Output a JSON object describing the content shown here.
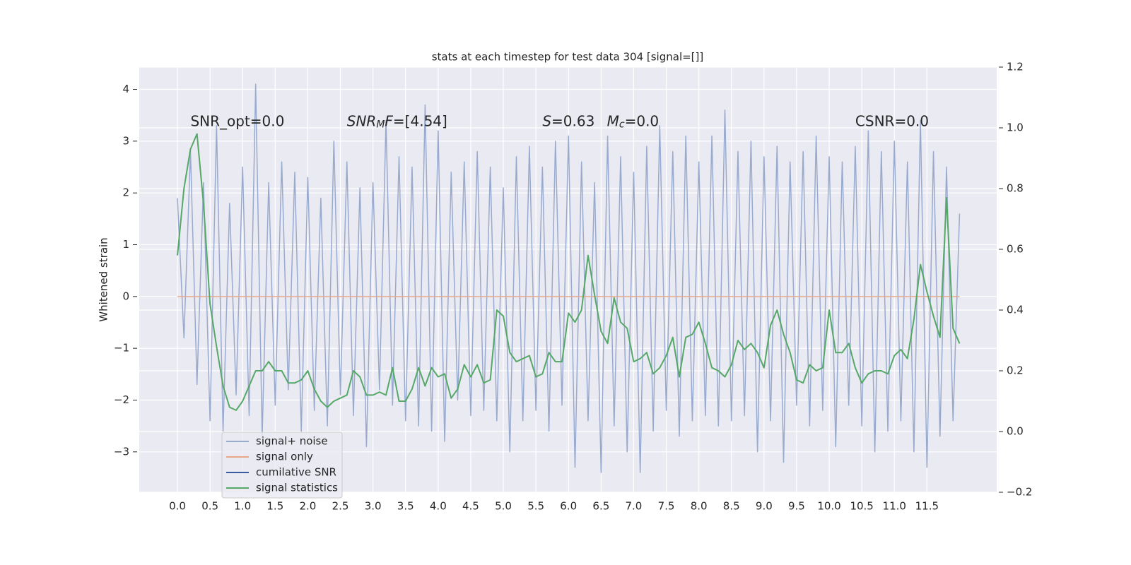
{
  "chart_data": {
    "type": "line",
    "title": "stats at each timestep for test data 304 [signal=[]]",
    "ylabel": "Whitened strain",
    "xlim": [
      -0.586,
      12.57
    ],
    "ylim": [
      -3.78,
      4.43
    ],
    "y2lim": [
      -0.2,
      1.2
    ],
    "xticks": [
      {
        "value": 0,
        "label": "0.0"
      },
      {
        "value": 0.5,
        "label": "0.5"
      },
      {
        "value": 1,
        "label": "1.0"
      },
      {
        "value": 1.5,
        "label": "1.5"
      },
      {
        "value": 2,
        "label": "2.0"
      },
      {
        "value": 2.5,
        "label": "2.5"
      },
      {
        "value": 3,
        "label": "3.0"
      },
      {
        "value": 3.5,
        "label": "3.5"
      },
      {
        "value": 4,
        "label": "4.0"
      },
      {
        "value": 4.5,
        "label": "4.5"
      },
      {
        "value": 5,
        "label": "5.0"
      },
      {
        "value": 5.5,
        "label": "5.5"
      },
      {
        "value": 6,
        "label": "6.0"
      },
      {
        "value": 6.5,
        "label": "6.5"
      },
      {
        "value": 7,
        "label": "7.0"
      },
      {
        "value": 7.5,
        "label": "7.5"
      },
      {
        "value": 8,
        "label": "8.0"
      },
      {
        "value": 8.5,
        "label": "8.5"
      },
      {
        "value": 9,
        "label": "9.0"
      },
      {
        "value": 9.5,
        "label": "9.5"
      },
      {
        "value": 10,
        "label": "10.0"
      },
      {
        "value": 10.5,
        "label": "10.5"
      },
      {
        "value": 11,
        "label": "11.0"
      },
      {
        "value": 11.5,
        "label": "11.5"
      }
    ],
    "yticks": [
      {
        "value": -3,
        "label": "−3"
      },
      {
        "value": -2,
        "label": "−2"
      },
      {
        "value": -1,
        "label": "−1"
      },
      0,
      1,
      2,
      3,
      4
    ],
    "y2ticks": [
      {
        "value": -0.2,
        "label": "−0.2"
      },
      {
        "value": 0,
        "label": "0.0"
      },
      {
        "value": 0.2,
        "label": "0.2"
      },
      {
        "value": 0.4,
        "label": "0.4"
      },
      {
        "value": 0.6,
        "label": "0.6"
      },
      {
        "value": 0.8,
        "label": "0.8"
      },
      {
        "value": 1,
        "label": "1.0"
      },
      {
        "value": 1.2,
        "label": "1.2"
      }
    ],
    "grid": true,
    "legend": "lower left",
    "x": [
      0,
      0.1,
      0.2,
      0.3,
      0.4,
      0.5,
      0.6,
      0.7,
      0.8,
      0.9,
      1,
      1.1,
      1.2,
      1.3,
      1.4,
      1.5,
      1.6,
      1.7,
      1.8,
      1.9,
      2,
      2.1,
      2.2,
      2.3,
      2.4,
      2.5,
      2.6,
      2.7,
      2.8,
      2.9,
      3,
      3.1,
      3.2,
      3.3,
      3.4,
      3.5,
      3.6,
      3.7,
      3.8,
      3.9,
      4,
      4.1,
      4.2,
      4.3,
      4.4,
      4.5,
      4.6,
      4.7,
      4.8,
      4.9,
      5,
      5.1,
      5.2,
      5.3,
      5.4,
      5.5,
      5.6,
      5.7,
      5.8,
      5.9,
      6,
      6.1,
      6.2,
      6.3,
      6.4,
      6.5,
      6.6,
      6.7,
      6.8,
      6.9,
      7,
      7.1,
      7.2,
      7.3,
      7.4,
      7.5,
      7.6,
      7.7,
      7.8,
      7.9,
      8,
      8.1,
      8.2,
      8.3,
      8.4,
      8.5,
      8.6,
      8.7,
      8.8,
      8.9,
      9,
      9.1,
      9.2,
      9.3,
      9.4,
      9.5,
      9.6,
      9.7,
      9.8,
      9.9,
      10,
      10.1,
      10.2,
      10.3,
      10.4,
      10.5,
      10.6,
      10.7,
      10.8,
      10.9,
      11,
      11.1,
      11.2,
      11.3,
      11.4,
      11.5,
      11.6,
      11.7,
      11.8,
      11.9,
      12
    ],
    "series": [
      {
        "name": "signal+ noise",
        "color": "#99aacf",
        "values": [
          1.9,
          -0.8,
          2.8,
          -1.7,
          2.2,
          -2.4,
          3.3,
          -2.6,
          1.8,
          -1.9,
          2.5,
          -2.3,
          4.1,
          -2.7,
          2.2,
          -2.1,
          2.6,
          -1.8,
          2.4,
          -2.6,
          2.3,
          -2.2,
          1.9,
          -2.5,
          3.0,
          -1.9,
          2.6,
          -2.3,
          2.1,
          -2.9,
          2.2,
          -1.8,
          3.4,
          -2.1,
          2.7,
          -2.4,
          2.5,
          -2.5,
          3.7,
          -2.6,
          3.2,
          -2.8,
          2.4,
          -2.0,
          2.6,
          -2.3,
          2.8,
          -2.2,
          2.5,
          -2.4,
          2.1,
          -3.0,
          2.7,
          -2.4,
          2.9,
          -2.2,
          2.5,
          -2.6,
          3.0,
          -2.1,
          3.1,
          -3.3,
          2.6,
          -2.4,
          2.2,
          -3.4,
          3.1,
          -2.5,
          2.7,
          -3.0,
          2.4,
          -3.4,
          2.9,
          -2.6,
          3.3,
          -2.2,
          2.8,
          -2.7,
          3.1,
          -2.4,
          2.6,
          -2.3,
          3.1,
          -2.5,
          3.6,
          -2.4,
          2.8,
          -2.3,
          3.0,
          -3.0,
          2.7,
          -2.4,
          2.9,
          -3.2,
          2.6,
          -2.1,
          2.8,
          -2.5,
          3.1,
          -2.2,
          2.7,
          -2.9,
          2.6,
          -2.1,
          2.9,
          -2.5,
          3.2,
          -3.0,
          2.8,
          -2.6,
          3.0,
          -2.4,
          2.6,
          -3.0,
          3.4,
          -3.3,
          2.8,
          -2.7,
          2.5,
          -2.4,
          1.6
        ]
      },
      {
        "name": "signal only",
        "color": "#e8a98a",
        "x": [
          0,
          12
        ],
        "values": [
          0,
          0
        ]
      },
      {
        "name": "cumilative SNR",
        "color": "#3a5da0"
      },
      {
        "name": "signal statistics",
        "color": "#55a868",
        "axis": "y2",
        "values": [
          0.58,
          0.8,
          0.93,
          0.98,
          0.75,
          0.42,
          0.28,
          0.15,
          0.08,
          0.07,
          0.1,
          0.15,
          0.2,
          0.2,
          0.23,
          0.2,
          0.2,
          0.16,
          0.16,
          0.17,
          0.2,
          0.14,
          0.1,
          0.08,
          0.1,
          0.11,
          0.12,
          0.2,
          0.18,
          0.12,
          0.12,
          0.13,
          0.12,
          0.21,
          0.1,
          0.1,
          0.14,
          0.21,
          0.15,
          0.21,
          0.18,
          0.19,
          0.11,
          0.14,
          0.22,
          0.18,
          0.22,
          0.16,
          0.17,
          0.4,
          0.38,
          0.26,
          0.23,
          0.24,
          0.25,
          0.18,
          0.19,
          0.26,
          0.23,
          0.23,
          0.39,
          0.36,
          0.4,
          0.58,
          0.45,
          0.33,
          0.29,
          0.44,
          0.36,
          0.34,
          0.23,
          0.24,
          0.26,
          0.19,
          0.21,
          0.25,
          0.31,
          0.18,
          0.31,
          0.32,
          0.36,
          0.29,
          0.21,
          0.2,
          0.18,
          0.22,
          0.3,
          0.27,
          0.29,
          0.26,
          0.21,
          0.35,
          0.4,
          0.32,
          0.26,
          0.17,
          0.16,
          0.22,
          0.2,
          0.21,
          0.4,
          0.26,
          0.26,
          0.29,
          0.21,
          0.16,
          0.19,
          0.2,
          0.2,
          0.19,
          0.25,
          0.27,
          0.24,
          0.37,
          0.55,
          0.46,
          0.38,
          0.31,
          0.77,
          0.34,
          0.29
        ]
      }
    ],
    "annotations": [
      {
        "x": 0.2,
        "y": 3.37,
        "segments": [
          {
            "text": "SNR_opt=0.0"
          }
        ]
      },
      {
        "x": 2.6,
        "y": 3.37,
        "segments": [
          {
            "text": "SNR",
            "italic": true
          },
          {
            "text": "M",
            "italic": true,
            "sub": true
          },
          {
            "text": "F",
            "italic": true
          },
          {
            "text": "=[4.54]"
          }
        ]
      },
      {
        "x": 5.6,
        "y": 3.37,
        "segments": [
          {
            "text": "S",
            "italic": true
          },
          {
            "text": "=0.63"
          }
        ]
      },
      {
        "x": 6.59,
        "y": 3.37,
        "segments": [
          {
            "text": "M",
            "italic": true
          },
          {
            "text": "c",
            "italic": true,
            "sub": true
          },
          {
            "text": "=0.0"
          }
        ]
      },
      {
        "x": 10.4,
        "y": 3.37,
        "segments": [
          {
            "text": "CSNR=0.0"
          }
        ]
      }
    ]
  }
}
